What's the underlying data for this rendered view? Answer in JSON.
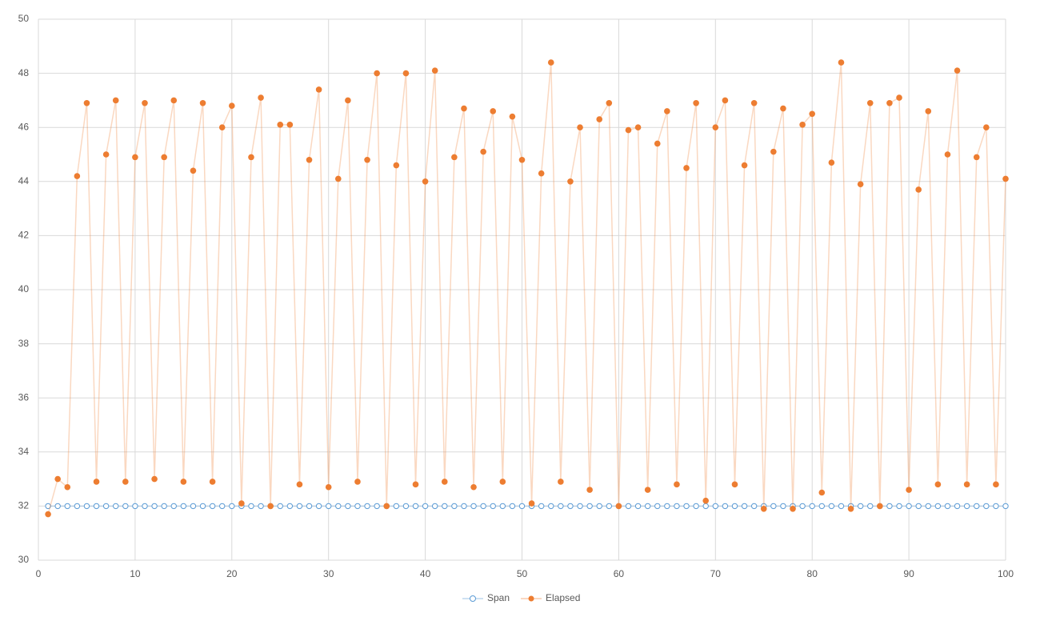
{
  "chart_data": {
    "type": "line",
    "x": [
      1,
      2,
      3,
      4,
      5,
      6,
      7,
      8,
      9,
      10,
      11,
      12,
      13,
      14,
      15,
      16,
      17,
      18,
      19,
      20,
      21,
      22,
      23,
      24,
      25,
      26,
      27,
      28,
      29,
      30,
      31,
      32,
      33,
      34,
      35,
      36,
      37,
      38,
      39,
      40,
      41,
      42,
      43,
      44,
      45,
      46,
      47,
      48,
      49,
      50,
      51,
      52,
      53,
      54,
      55,
      56,
      57,
      58,
      59,
      60,
      61,
      62,
      63,
      64,
      65,
      66,
      67,
      68,
      69,
      70,
      71,
      72,
      73,
      74,
      75,
      76,
      77,
      78,
      79,
      80,
      81,
      82,
      83,
      84,
      85,
      86,
      87,
      88,
      89,
      90,
      91,
      92,
      93,
      94,
      95,
      96,
      97,
      98,
      99,
      100
    ],
    "series": [
      {
        "name": "Span",
        "color": "#5b9bd5",
        "marker": "hollow",
        "values": [
          32,
          32,
          32,
          32,
          32,
          32,
          32,
          32,
          32,
          32,
          32,
          32,
          32,
          32,
          32,
          32,
          32,
          32,
          32,
          32,
          32,
          32,
          32,
          32,
          32,
          32,
          32,
          32,
          32,
          32,
          32,
          32,
          32,
          32,
          32,
          32,
          32,
          32,
          32,
          32,
          32,
          32,
          32,
          32,
          32,
          32,
          32,
          32,
          32,
          32,
          32,
          32,
          32,
          32,
          32,
          32,
          32,
          32,
          32,
          32,
          32,
          32,
          32,
          32,
          32,
          32,
          32,
          32,
          32,
          32,
          32,
          32,
          32,
          32,
          32,
          32,
          32,
          32,
          32,
          32,
          32,
          32,
          32,
          32,
          32,
          32,
          32,
          32,
          32,
          32,
          32,
          32,
          32,
          32,
          32,
          32,
          32,
          32,
          32,
          32
        ]
      },
      {
        "name": "Elapsed",
        "color": "#ed7d31",
        "marker": "filled",
        "values": [
          31.7,
          33.0,
          32.7,
          44.2,
          46.9,
          32.9,
          45.0,
          47.0,
          32.9,
          44.9,
          46.9,
          33.0,
          44.9,
          47.0,
          32.9,
          44.4,
          46.9,
          32.9,
          46.0,
          46.8,
          32.1,
          44.9,
          47.1,
          32.0,
          46.1,
          46.1,
          32.8,
          44.8,
          47.4,
          32.7,
          44.1,
          47.0,
          32.9,
          44.8,
          48.0,
          32.0,
          44.6,
          48.0,
          32.8,
          44.0,
          48.1,
          32.9,
          44.9,
          46.7,
          32.7,
          45.1,
          46.6,
          32.9,
          46.4,
          44.8,
          32.1,
          44.3,
          48.4,
          32.9,
          44.0,
          46.0,
          32.6,
          46.3,
          46.9,
          32.0,
          45.9,
          46.0,
          32.6,
          45.4,
          46.6,
          32.8,
          44.5,
          46.9,
          32.2,
          46.0,
          47.0,
          32.8,
          44.6,
          46.9,
          31.9,
          45.1,
          46.7,
          31.9,
          46.1,
          46.5,
          32.5,
          44.7,
          48.4,
          31.9,
          43.9,
          46.9,
          32.0,
          46.9,
          47.1,
          32.6,
          43.7,
          46.6,
          32.8,
          45.0,
          48.1,
          32.8,
          44.9,
          46.0,
          32.8,
          44.1
        ]
      }
    ],
    "xlim": [
      0,
      100
    ],
    "xticks": [
      0,
      10,
      20,
      30,
      40,
      50,
      60,
      70,
      80,
      90,
      100
    ],
    "ylim": [
      30,
      50
    ],
    "yticks": [
      30,
      32,
      34,
      36,
      38,
      40,
      42,
      44,
      46,
      48,
      50
    ],
    "grid": true,
    "legend": "bottom"
  }
}
